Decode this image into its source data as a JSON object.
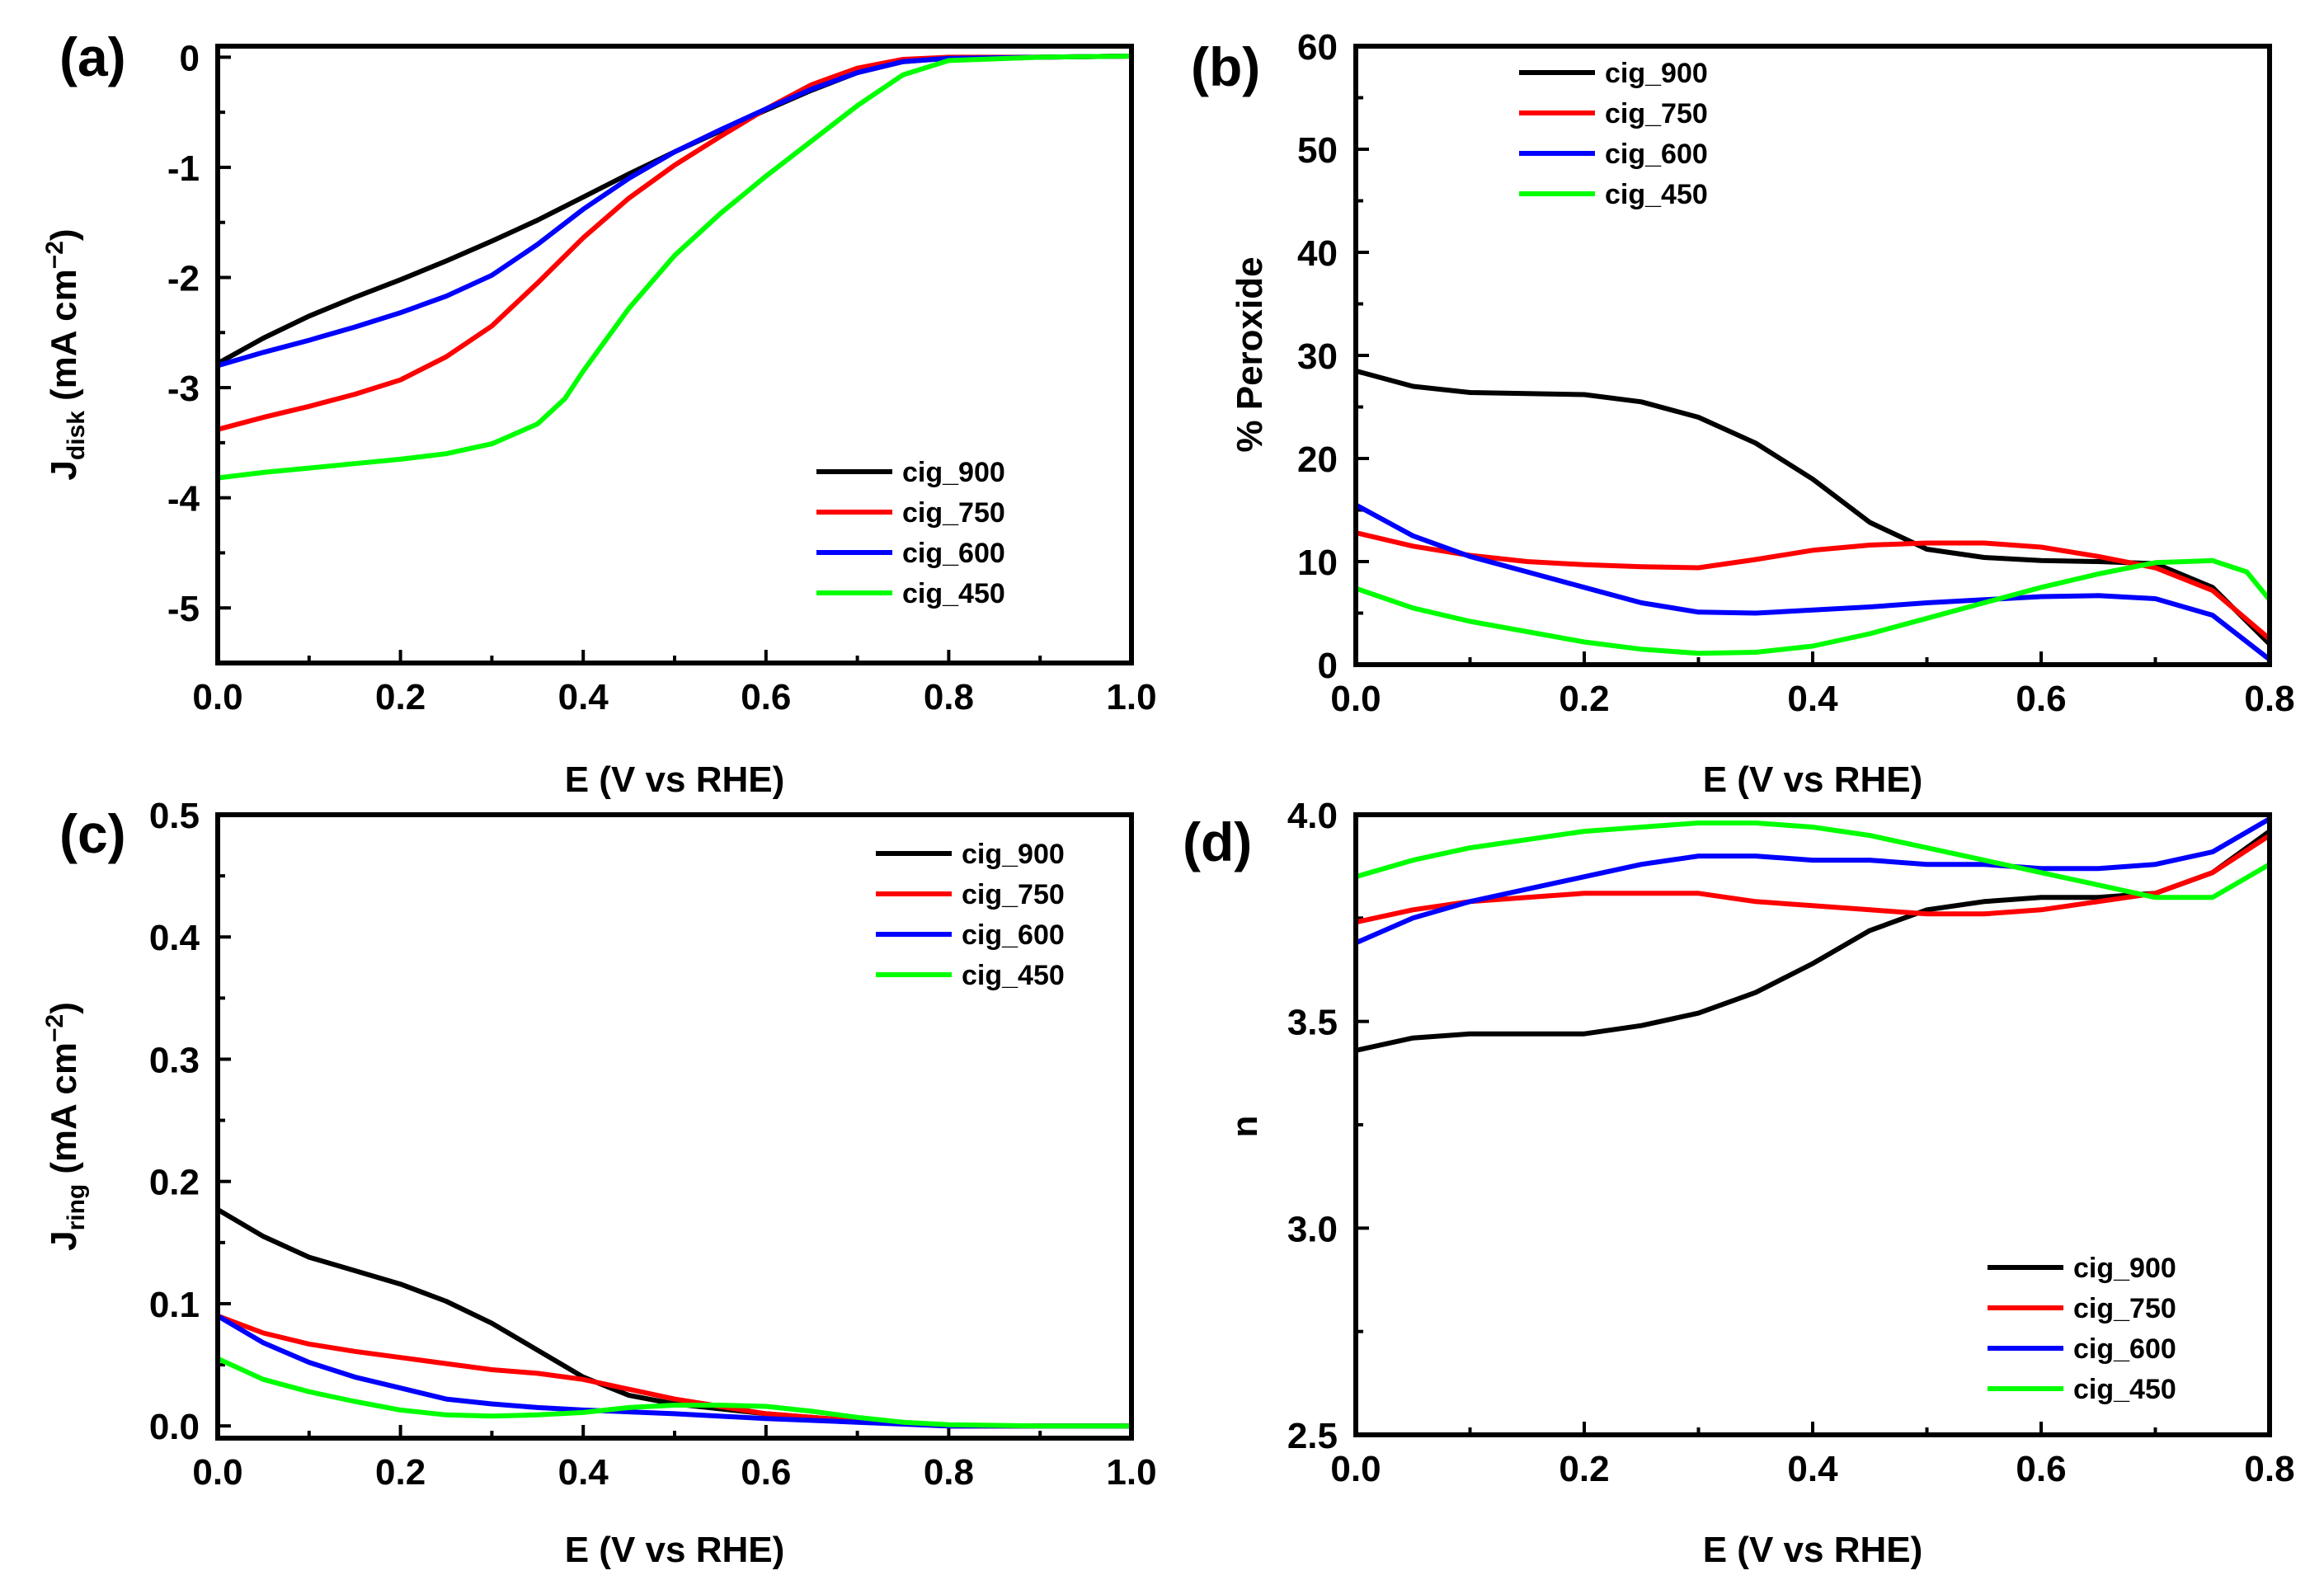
{
  "chart_data": [
    {
      "type": "line",
      "panel": "(a)",
      "xlabel": "E (V vs RHE)",
      "ylabel_main": "J",
      "ylabel_sub": "disk",
      "ylabel_unit": "(mA cm",
      "ylabel_sup": "−2",
      "ylabel_end": ")",
      "xlim": [
        0,
        1.0
      ],
      "ylim": [
        -5.5,
        0.1
      ],
      "xticks": [
        0.0,
        0.2,
        0.4,
        0.6,
        0.8,
        1.0
      ],
      "xtick_labels": [
        "0.0",
        "0.2",
        "0.4",
        "0.6",
        "0.8",
        "1.0"
      ],
      "yticks": [
        0,
        -1,
        -2,
        -3,
        -4,
        -5
      ],
      "ytick_labels": [
        "0",
        "-1",
        "-2",
        "-3",
        "-4",
        "-5"
      ],
      "legend_position": "lower-right",
      "series": [
        {
          "name": "cig_900",
          "color": "#000000",
          "x": [
            0.0,
            0.05,
            0.1,
            0.15,
            0.2,
            0.25,
            0.3,
            0.35,
            0.4,
            0.45,
            0.5,
            0.55,
            0.6,
            0.65,
            0.7,
            0.75,
            0.8,
            0.9,
            1.0
          ],
          "y": [
            -2.78,
            -2.55,
            -2.35,
            -2.18,
            -2.02,
            -1.85,
            -1.67,
            -1.48,
            -1.27,
            -1.06,
            -0.86,
            -0.67,
            -0.48,
            -0.3,
            -0.14,
            -0.04,
            -0.01,
            0.0,
            0.01
          ]
        },
        {
          "name": "cig_750",
          "color": "#ff0000",
          "x": [
            0.0,
            0.05,
            0.1,
            0.15,
            0.2,
            0.25,
            0.3,
            0.35,
            0.4,
            0.45,
            0.5,
            0.55,
            0.6,
            0.65,
            0.7,
            0.75,
            0.8,
            0.9,
            1.0
          ],
          "y": [
            -3.38,
            -3.27,
            -3.17,
            -3.06,
            -2.93,
            -2.72,
            -2.44,
            -2.05,
            -1.64,
            -1.28,
            -0.98,
            -0.72,
            -0.47,
            -0.25,
            -0.1,
            -0.02,
            0.0,
            0.0,
            0.01
          ]
        },
        {
          "name": "cig_600",
          "color": "#0000ff",
          "x": [
            0.0,
            0.05,
            0.1,
            0.15,
            0.2,
            0.25,
            0.3,
            0.35,
            0.4,
            0.45,
            0.5,
            0.55,
            0.6,
            0.65,
            0.7,
            0.75,
            0.8,
            0.9,
            1.0
          ],
          "y": [
            -2.8,
            -2.68,
            -2.57,
            -2.45,
            -2.32,
            -2.17,
            -1.98,
            -1.7,
            -1.38,
            -1.1,
            -0.86,
            -0.66,
            -0.47,
            -0.29,
            -0.14,
            -0.04,
            -0.01,
            0.0,
            0.01
          ]
        },
        {
          "name": "cig_450",
          "color": "#00ff00",
          "x": [
            0.0,
            0.05,
            0.1,
            0.15,
            0.2,
            0.25,
            0.3,
            0.35,
            0.38,
            0.4,
            0.45,
            0.5,
            0.55,
            0.6,
            0.65,
            0.7,
            0.75,
            0.8,
            0.9,
            1.0
          ],
          "y": [
            -3.82,
            -3.77,
            -3.73,
            -3.69,
            -3.65,
            -3.6,
            -3.51,
            -3.33,
            -3.1,
            -2.85,
            -2.28,
            -1.8,
            -1.42,
            -1.08,
            -0.76,
            -0.44,
            -0.16,
            -0.03,
            0.0,
            0.01
          ]
        }
      ]
    },
    {
      "type": "line",
      "panel": "(b)",
      "xlabel": "E (V vs RHE)",
      "ylabel": "% Peroxide",
      "xlim": [
        0,
        0.8
      ],
      "ylim": [
        0,
        60
      ],
      "xticks": [
        0.0,
        0.2,
        0.4,
        0.6,
        0.8
      ],
      "xtick_labels": [
        "0.0",
        "0.2",
        "0.4",
        "0.6",
        "0.8"
      ],
      "yticks": [
        0,
        10,
        20,
        30,
        40,
        50,
        60
      ],
      "ytick_labels": [
        "0",
        "10",
        "20",
        "30",
        "40",
        "50",
        "60"
      ],
      "legend_position": "top-left",
      "series": [
        {
          "name": "cig_900",
          "color": "#000000",
          "x": [
            0.0,
            0.05,
            0.1,
            0.15,
            0.2,
            0.25,
            0.3,
            0.35,
            0.4,
            0.45,
            0.5,
            0.55,
            0.6,
            0.65,
            0.7,
            0.75,
            0.8
          ],
          "y": [
            28.5,
            27.0,
            26.4,
            26.3,
            26.2,
            25.5,
            24.0,
            21.5,
            18.0,
            13.8,
            11.2,
            10.4,
            10.1,
            10.0,
            9.8,
            7.5,
            2.0
          ]
        },
        {
          "name": "cig_750",
          "color": "#ff0000",
          "x": [
            0.0,
            0.05,
            0.1,
            0.15,
            0.2,
            0.25,
            0.3,
            0.35,
            0.4,
            0.45,
            0.5,
            0.55,
            0.6,
            0.65,
            0.7,
            0.75,
            0.8
          ],
          "y": [
            12.8,
            11.5,
            10.6,
            10.0,
            9.7,
            9.5,
            9.4,
            10.2,
            11.1,
            11.6,
            11.8,
            11.8,
            11.4,
            10.5,
            9.4,
            7.2,
            2.5
          ]
        },
        {
          "name": "cig_600",
          "color": "#0000ff",
          "x": [
            0.0,
            0.05,
            0.1,
            0.15,
            0.2,
            0.25,
            0.3,
            0.35,
            0.4,
            0.45,
            0.5,
            0.55,
            0.6,
            0.65,
            0.7,
            0.75,
            0.8
          ],
          "y": [
            15.5,
            12.5,
            10.5,
            9.0,
            7.5,
            6.0,
            5.1,
            5.0,
            5.3,
            5.6,
            6.0,
            6.3,
            6.6,
            6.7,
            6.4,
            4.8,
            0.5
          ]
        },
        {
          "name": "cig_450",
          "color": "#00ff00",
          "x": [
            0.0,
            0.05,
            0.1,
            0.15,
            0.2,
            0.25,
            0.3,
            0.35,
            0.4,
            0.45,
            0.5,
            0.55,
            0.6,
            0.65,
            0.7,
            0.75,
            0.78,
            0.8
          ],
          "y": [
            7.4,
            5.5,
            4.2,
            3.2,
            2.2,
            1.5,
            1.1,
            1.2,
            1.8,
            3.0,
            4.5,
            6.0,
            7.5,
            8.8,
            9.9,
            10.1,
            9.0,
            6.3
          ]
        }
      ]
    },
    {
      "type": "line",
      "panel": "(c)",
      "xlabel": "E (V vs RHE)",
      "ylabel_main": "J",
      "ylabel_sub": "ring",
      "ylabel_unit": "(mA cm",
      "ylabel_sup": "−2",
      "ylabel_end": ")",
      "xlim": [
        0,
        1.0
      ],
      "ylim": [
        -0.01,
        0.5
      ],
      "xticks": [
        0.0,
        0.2,
        0.4,
        0.6,
        0.8,
        1.0
      ],
      "xtick_labels": [
        "0.0",
        "0.2",
        "0.4",
        "0.6",
        "0.8",
        "1.0"
      ],
      "yticks": [
        0.0,
        0.1,
        0.2,
        0.3,
        0.4,
        0.5
      ],
      "ytick_labels": [
        "0.0",
        "0.1",
        "0.2",
        "0.3",
        "0.4",
        "0.5"
      ],
      "legend_position": "top-right",
      "series": [
        {
          "name": "cig_900",
          "color": "#000000",
          "x": [
            0.0,
            0.05,
            0.1,
            0.15,
            0.2,
            0.25,
            0.3,
            0.35,
            0.4,
            0.45,
            0.5,
            0.6,
            0.7,
            0.8,
            0.9,
            1.0
          ],
          "y": [
            0.177,
            0.155,
            0.138,
            0.127,
            0.116,
            0.102,
            0.084,
            0.062,
            0.04,
            0.025,
            0.018,
            0.01,
            0.004,
            0.0,
            0.0,
            0.0
          ]
        },
        {
          "name": "cig_750",
          "color": "#ff0000",
          "x": [
            0.0,
            0.05,
            0.1,
            0.15,
            0.2,
            0.25,
            0.3,
            0.35,
            0.4,
            0.45,
            0.5,
            0.55,
            0.6,
            0.7,
            0.8,
            0.9,
            1.0
          ],
          "y": [
            0.09,
            0.076,
            0.067,
            0.061,
            0.056,
            0.051,
            0.046,
            0.043,
            0.038,
            0.03,
            0.022,
            0.016,
            0.01,
            0.004,
            0.0,
            0.0,
            0.0
          ]
        },
        {
          "name": "cig_600",
          "color": "#0000ff",
          "x": [
            0.0,
            0.05,
            0.1,
            0.15,
            0.2,
            0.25,
            0.3,
            0.35,
            0.4,
            0.5,
            0.6,
            0.7,
            0.8,
            0.9,
            1.0
          ],
          "y": [
            0.09,
            0.068,
            0.052,
            0.04,
            0.031,
            0.022,
            0.018,
            0.015,
            0.013,
            0.01,
            0.006,
            0.003,
            0.0,
            0.0,
            0.0
          ]
        },
        {
          "name": "cig_450",
          "color": "#00ff00",
          "x": [
            0.0,
            0.05,
            0.1,
            0.15,
            0.2,
            0.25,
            0.3,
            0.35,
            0.4,
            0.45,
            0.5,
            0.55,
            0.6,
            0.65,
            0.7,
            0.75,
            0.8,
            0.9,
            1.0
          ],
          "y": [
            0.055,
            0.038,
            0.028,
            0.02,
            0.013,
            0.009,
            0.008,
            0.009,
            0.011,
            0.015,
            0.017,
            0.017,
            0.016,
            0.012,
            0.007,
            0.003,
            0.001,
            0.0,
            0.0
          ]
        }
      ]
    },
    {
      "type": "line",
      "panel": "(d)",
      "xlabel": "E (V vs RHE)",
      "ylabel": "n",
      "xlim": [
        0,
        0.8
      ],
      "ylim": [
        2.5,
        4.0
      ],
      "xticks": [
        0.0,
        0.2,
        0.4,
        0.6,
        0.8
      ],
      "xtick_labels": [
        "0.0",
        "0.2",
        "0.4",
        "0.6",
        "0.8"
      ],
      "yticks": [
        2.5,
        3.0,
        3.5,
        4.0
      ],
      "ytick_labels": [
        "2.5",
        "3.0",
        "3.5",
        "4.0"
      ],
      "legend_position": "lower-right",
      "series": [
        {
          "name": "cig_900",
          "color": "#000000",
          "x": [
            0.0,
            0.05,
            0.1,
            0.15,
            0.2,
            0.25,
            0.3,
            0.35,
            0.4,
            0.45,
            0.5,
            0.55,
            0.6,
            0.65,
            0.7,
            0.75,
            0.8
          ],
          "y": [
            3.43,
            3.46,
            3.47,
            3.47,
            3.47,
            3.49,
            3.52,
            3.57,
            3.64,
            3.72,
            3.77,
            3.79,
            3.8,
            3.8,
            3.81,
            3.86,
            3.96
          ]
        },
        {
          "name": "cig_750",
          "color": "#ff0000",
          "x": [
            0.0,
            0.05,
            0.1,
            0.15,
            0.2,
            0.25,
            0.3,
            0.35,
            0.4,
            0.45,
            0.5,
            0.55,
            0.6,
            0.65,
            0.7,
            0.75,
            0.8
          ],
          "y": [
            3.74,
            3.77,
            3.79,
            3.8,
            3.81,
            3.81,
            3.81,
            3.79,
            3.78,
            3.77,
            3.76,
            3.76,
            3.77,
            3.79,
            3.81,
            3.86,
            3.95
          ]
        },
        {
          "name": "cig_600",
          "color": "#0000ff",
          "x": [
            0.0,
            0.05,
            0.1,
            0.15,
            0.2,
            0.25,
            0.3,
            0.35,
            0.4,
            0.45,
            0.5,
            0.55,
            0.6,
            0.65,
            0.7,
            0.75,
            0.8
          ],
          "y": [
            3.69,
            3.75,
            3.79,
            3.82,
            3.85,
            3.88,
            3.9,
            3.9,
            3.89,
            3.89,
            3.88,
            3.88,
            3.87,
            3.87,
            3.88,
            3.91,
            3.99
          ]
        },
        {
          "name": "cig_450",
          "color": "#00ff00",
          "x": [
            0.0,
            0.05,
            0.1,
            0.15,
            0.2,
            0.25,
            0.3,
            0.35,
            0.4,
            0.45,
            0.5,
            0.55,
            0.6,
            0.65,
            0.7,
            0.75,
            0.8
          ],
          "y": [
            3.85,
            3.89,
            3.92,
            3.94,
            3.96,
            3.97,
            3.98,
            3.98,
            3.97,
            3.95,
            3.92,
            3.89,
            3.86,
            3.83,
            3.8,
            3.8,
            3.88
          ]
        }
      ]
    }
  ]
}
